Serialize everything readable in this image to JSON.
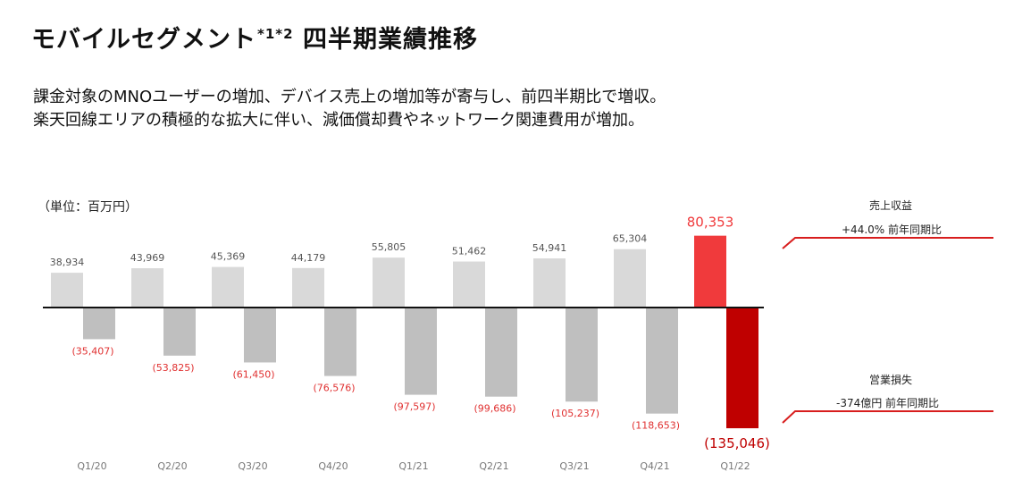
{
  "title": {
    "main": "モバイルセグメント",
    "superscript": "*1*2",
    "suffix": " 四半期業績推移"
  },
  "subtitle": {
    "line1": "課金対象のMNOユーザーの増加、デバイス売上の増加等が寄与し、前四半期比で増収。",
    "line2": "楽天回線エリアの積極的な拡大に伴い、減価償却費やネットワーク関連費用が増加。"
  },
  "unit_label": "（単位：百万円）",
  "annotations": {
    "revenue_title": "売上収益",
    "revenue_change": "+44.0% 前年同期比",
    "loss_title": "営業損失",
    "loss_change": "-374億円 前年同期比"
  },
  "colors": {
    "revenue_bar": "#d9d9d9",
    "loss_bar": "#bfbfbf",
    "highlight_revenue": "#f03a3c",
    "highlight_loss": "#bf0000",
    "loss_label": "#e03030",
    "accent_line": "#d81e1e"
  },
  "chart_data": {
    "type": "bar",
    "title": "モバイルセグメント 四半期業績推移",
    "unit": "百万円",
    "categories": [
      "Q1/20",
      "Q2/20",
      "Q3/20",
      "Q4/20",
      "Q1/21",
      "Q2/21",
      "Q3/21",
      "Q4/21",
      "Q1/22"
    ],
    "series": [
      {
        "name": "売上収益",
        "values": [
          38934,
          43969,
          45369,
          44179,
          55805,
          51462,
          54941,
          65304,
          80353
        ],
        "labels": [
          "38,934",
          "43,969",
          "45,369",
          "44,179",
          "55,805",
          "51,462",
          "54,941",
          "65,304",
          "80,353"
        ]
      },
      {
        "name": "営業損失",
        "values": [
          -35407,
          -53825,
          -61450,
          -76576,
          -97597,
          -99686,
          -105237,
          -118653,
          -135046
        ],
        "labels": [
          "(35,407)",
          "(53,825)",
          "(61,450)",
          "(76,576)",
          "(97,597)",
          "(99,686)",
          "(105,237)",
          "(118,653)",
          "(135,046)"
        ]
      }
    ],
    "highlight_category": "Q1/22",
    "grid": false,
    "legend": "right"
  }
}
